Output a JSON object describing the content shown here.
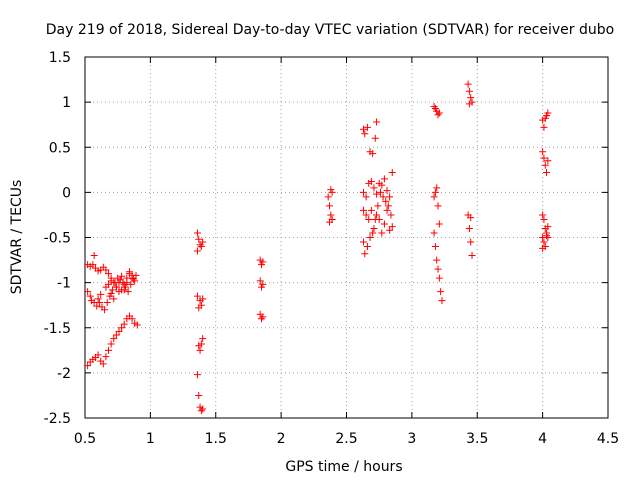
{
  "chart_data": {
    "type": "scatter",
    "title": "Day 219 of 2018, Sidereal Day-to-day VTEC variation (SDTVAR) for receiver dubo",
    "xlabel": "GPS time / hours",
    "ylabel": "SDTVAR / TECUs",
    "xlim": [
      0.5,
      4.5
    ],
    "ylim": [
      -2.5,
      1.5
    ],
    "xticks": [
      0.5,
      1,
      1.5,
      2,
      2.5,
      3,
      3.5,
      4,
      4.5
    ],
    "xtick_labels": [
      "0.5",
      "1",
      "1.5",
      "2",
      "2.5",
      "3",
      "3.5",
      "4",
      "4.5"
    ],
    "yticks": [
      -2.5,
      -2,
      -1.5,
      -1,
      -0.5,
      0,
      0.5,
      1,
      1.5
    ],
    "ytick_labels": [
      "-2.5",
      "-2",
      "-1.5",
      "-1",
      "-0.5",
      "0",
      "0.5",
      "1",
      "1.5"
    ],
    "grid": true,
    "marker": "+",
    "marker_color": "#ff0000",
    "series": [
      {
        "name": "SDTVAR",
        "points": [
          [
            0.52,
            -0.8
          ],
          [
            0.54,
            -0.82
          ],
          [
            0.56,
            -0.8
          ],
          [
            0.57,
            -0.7
          ],
          [
            0.58,
            -0.84
          ],
          [
            0.6,
            -0.87
          ],
          [
            0.62,
            -0.86
          ],
          [
            0.64,
            -0.83
          ],
          [
            0.66,
            -0.86
          ],
          [
            0.68,
            -0.9
          ],
          [
            0.7,
            -0.95
          ],
          [
            0.72,
            -1.0
          ],
          [
            0.74,
            -1.05
          ],
          [
            0.76,
            -1.1
          ],
          [
            0.78,
            -1.08
          ],
          [
            0.8,
            -1.02
          ],
          [
            0.82,
            -0.95
          ],
          [
            0.84,
            -0.9
          ],
          [
            0.86,
            -0.92
          ],
          [
            0.88,
            -0.98
          ],
          [
            0.52,
            -1.1
          ],
          [
            0.54,
            -1.15
          ],
          [
            0.55,
            -1.2
          ],
          [
            0.57,
            -1.22
          ],
          [
            0.59,
            -1.26
          ],
          [
            0.61,
            -1.22
          ],
          [
            0.63,
            -1.27
          ],
          [
            0.65,
            -1.3
          ],
          [
            0.67,
            -1.22
          ],
          [
            0.69,
            -1.15
          ],
          [
            0.71,
            -1.08
          ],
          [
            0.73,
            -1.0
          ],
          [
            0.75,
            -0.95
          ],
          [
            0.77,
            -0.97
          ],
          [
            0.79,
            -1.0
          ],
          [
            0.81,
            -1.05
          ],
          [
            0.83,
            -1.1
          ],
          [
            0.85,
            -1.02
          ],
          [
            0.87,
            -0.96
          ],
          [
            0.89,
            -0.92
          ],
          [
            0.6,
            -1.18
          ],
          [
            0.62,
            -1.13
          ],
          [
            0.66,
            -1.05
          ],
          [
            0.7,
            -1.12
          ],
          [
            0.72,
            -1.18
          ],
          [
            0.74,
            -1.05
          ],
          [
            0.76,
            -1.0
          ],
          [
            0.78,
            -0.93
          ],
          [
            0.8,
            -1.08
          ],
          [
            0.82,
            -1.0
          ],
          [
            0.84,
            -0.88
          ],
          [
            0.86,
            -0.95
          ],
          [
            0.68,
            -1.02
          ],
          [
            0.7,
            -0.98
          ],
          [
            0.52,
            -1.92
          ],
          [
            0.54,
            -1.88
          ],
          [
            0.56,
            -1.85
          ],
          [
            0.58,
            -1.83
          ],
          [
            0.6,
            -1.8
          ],
          [
            0.62,
            -1.87
          ],
          [
            0.64,
            -1.9
          ],
          [
            0.66,
            -1.82
          ],
          [
            0.68,
            -1.75
          ],
          [
            0.7,
            -1.68
          ],
          [
            0.72,
            -1.62
          ],
          [
            0.74,
            -1.58
          ],
          [
            0.76,
            -1.54
          ],
          [
            0.78,
            -1.5
          ],
          [
            0.8,
            -1.46
          ],
          [
            0.82,
            -1.4
          ],
          [
            0.84,
            -1.37
          ],
          [
            0.86,
            -1.4
          ],
          [
            0.88,
            -1.45
          ],
          [
            0.9,
            -1.47
          ],
          [
            1.36,
            -0.45
          ],
          [
            1.37,
            -0.52
          ],
          [
            1.38,
            -0.58
          ],
          [
            1.39,
            -0.6
          ],
          [
            1.4,
            -0.55
          ],
          [
            1.36,
            -0.65
          ],
          [
            1.36,
            -1.15
          ],
          [
            1.38,
            -1.2
          ],
          [
            1.39,
            -1.25
          ],
          [
            1.4,
            -1.18
          ],
          [
            1.37,
            -1.28
          ],
          [
            1.37,
            -1.7
          ],
          [
            1.38,
            -1.75
          ],
          [
            1.39,
            -1.68
          ],
          [
            1.4,
            -1.62
          ],
          [
            1.36,
            -2.02
          ],
          [
            1.37,
            -2.25
          ],
          [
            1.38,
            -2.38
          ],
          [
            1.39,
            -2.42
          ],
          [
            1.4,
            -2.4
          ],
          [
            1.84,
            -0.75
          ],
          [
            1.85,
            -0.8
          ],
          [
            1.86,
            -0.77
          ],
          [
            1.84,
            -0.98
          ],
          [
            1.85,
            -1.05
          ],
          [
            1.86,
            -1.02
          ],
          [
            1.84,
            -1.35
          ],
          [
            1.85,
            -1.4
          ],
          [
            1.86,
            -1.38
          ],
          [
            2.36,
            -0.05
          ],
          [
            2.37,
            -0.15
          ],
          [
            2.38,
            -0.25
          ],
          [
            2.39,
            -0.3
          ],
          [
            2.37,
            -0.33
          ],
          [
            2.38,
            0.03
          ],
          [
            2.39,
            0.0
          ],
          [
            2.63,
            0.7
          ],
          [
            2.64,
            0.65
          ],
          [
            2.66,
            0.72
          ],
          [
            2.68,
            0.45
          ],
          [
            2.7,
            0.43
          ],
          [
            2.72,
            0.6
          ],
          [
            2.73,
            0.78
          ],
          [
            2.63,
            0.0
          ],
          [
            2.65,
            -0.05
          ],
          [
            2.67,
            0.1
          ],
          [
            2.69,
            0.12
          ],
          [
            2.71,
            0.05
          ],
          [
            2.73,
            -0.02
          ],
          [
            2.75,
            0.1
          ],
          [
            2.77,
            0.08
          ],
          [
            2.79,
            0.15
          ],
          [
            2.81,
            0.02
          ],
          [
            2.83,
            -0.05
          ],
          [
            2.85,
            0.22
          ],
          [
            2.63,
            -0.2
          ],
          [
            2.65,
            -0.25
          ],
          [
            2.67,
            -0.3
          ],
          [
            2.69,
            -0.2
          ],
          [
            2.71,
            -0.4
          ],
          [
            2.73,
            -0.25
          ],
          [
            2.75,
            -0.3
          ],
          [
            2.77,
            -0.45
          ],
          [
            2.79,
            -0.35
          ],
          [
            2.81,
            -0.2
          ],
          [
            2.83,
            -0.42
          ],
          [
            2.85,
            -0.38
          ],
          [
            2.63,
            -0.55
          ],
          [
            2.64,
            -0.68
          ],
          [
            2.66,
            -0.6
          ],
          [
            2.68,
            -0.5
          ],
          [
            2.7,
            -0.45
          ],
          [
            2.72,
            -0.3
          ],
          [
            2.74,
            -0.15
          ],
          [
            2.76,
            0.0
          ],
          [
            2.78,
            -0.05
          ],
          [
            2.8,
            -0.1
          ],
          [
            2.82,
            -0.15
          ],
          [
            2.84,
            -0.25
          ],
          [
            3.17,
            0.95
          ],
          [
            3.18,
            0.93
          ],
          [
            3.19,
            0.9
          ],
          [
            3.2,
            0.86
          ],
          [
            3.21,
            0.88
          ],
          [
            3.17,
            -0.05
          ],
          [
            3.18,
            0.0
          ],
          [
            3.19,
            0.05
          ],
          [
            3.2,
            -0.15
          ],
          [
            3.21,
            -0.35
          ],
          [
            3.17,
            -0.45
          ],
          [
            3.18,
            -0.6
          ],
          [
            3.19,
            -0.75
          ],
          [
            3.2,
            -0.85
          ],
          [
            3.21,
            -0.95
          ],
          [
            3.22,
            -1.1
          ],
          [
            3.23,
            -1.2
          ],
          [
            3.43,
            1.2
          ],
          [
            3.44,
            1.12
          ],
          [
            3.45,
            1.05
          ],
          [
            3.46,
            1.0
          ],
          [
            3.44,
            0.98
          ],
          [
            3.43,
            -0.25
          ],
          [
            3.44,
            -0.4
          ],
          [
            3.45,
            -0.55
          ],
          [
            3.46,
            -0.7
          ],
          [
            3.45,
            -0.28
          ],
          [
            4.0,
            0.8
          ],
          [
            4.01,
            0.72
          ],
          [
            4.02,
            0.82
          ],
          [
            4.03,
            0.85
          ],
          [
            4.04,
            0.88
          ],
          [
            4.0,
            0.45
          ],
          [
            4.01,
            0.38
          ],
          [
            4.02,
            0.3
          ],
          [
            4.03,
            0.22
          ],
          [
            4.04,
            0.35
          ],
          [
            4.0,
            -0.25
          ],
          [
            4.01,
            -0.3
          ],
          [
            4.02,
            -0.4
          ],
          [
            4.03,
            -0.45
          ],
          [
            4.04,
            -0.5
          ],
          [
            4.0,
            -0.5
          ],
          [
            4.01,
            -0.55
          ],
          [
            4.02,
            -0.6
          ],
          [
            4.03,
            -0.48
          ],
          [
            4.04,
            -0.38
          ],
          [
            4.0,
            -0.62
          ]
        ]
      }
    ]
  }
}
